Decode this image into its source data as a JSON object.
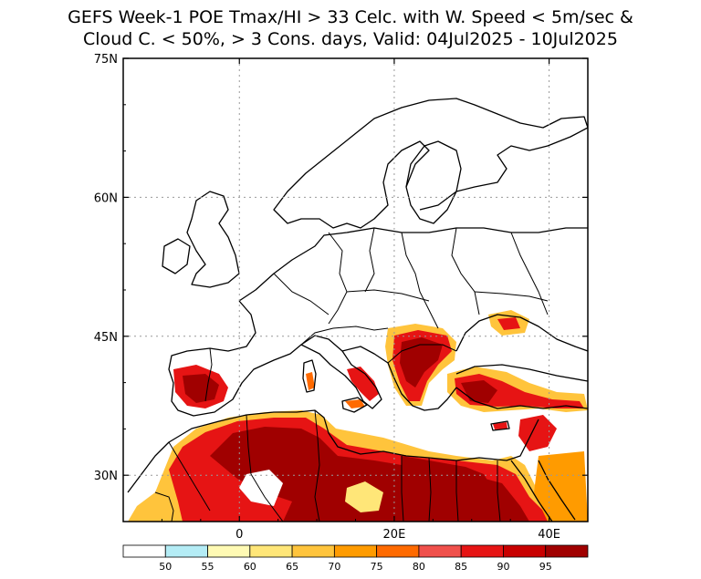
{
  "title": {
    "line1": "GEFS Week-1 POE Tmax/HI > 33 Celc. with W. Speed < 5m/sec &",
    "line2": "Cloud C. < 50%, > 3 Cons. days, Valid: 04Jul2025 - 10Jul2025"
  },
  "map": {
    "lon_range": [
      -15,
      45
    ],
    "lat_range": [
      25,
      75
    ],
    "lat_ticks": [
      {
        "value": 30,
        "label": "30N"
      },
      {
        "value": 45,
        "label": "45N"
      },
      {
        "value": 60,
        "label": "60N"
      },
      {
        "value": 75,
        "label": "75N"
      }
    ],
    "lon_ticks": [
      {
        "value": 0,
        "label": "0"
      },
      {
        "value": 20,
        "label": "20E"
      },
      {
        "value": 40,
        "label": "40E"
      }
    ],
    "gridlines": "dotted"
  },
  "colorbar": {
    "labels": [
      "50",
      "55",
      "60",
      "65",
      "70",
      "75",
      "80",
      "85",
      "90",
      "95"
    ],
    "colors": [
      "#ffffff",
      "#b4ecf5",
      "#fffab4",
      "#ffe678",
      "#ffc43c",
      "#ff9b00",
      "#ff6a00",
      "#f0504b",
      "#e61414",
      "#c80000",
      "#a00000"
    ]
  }
}
